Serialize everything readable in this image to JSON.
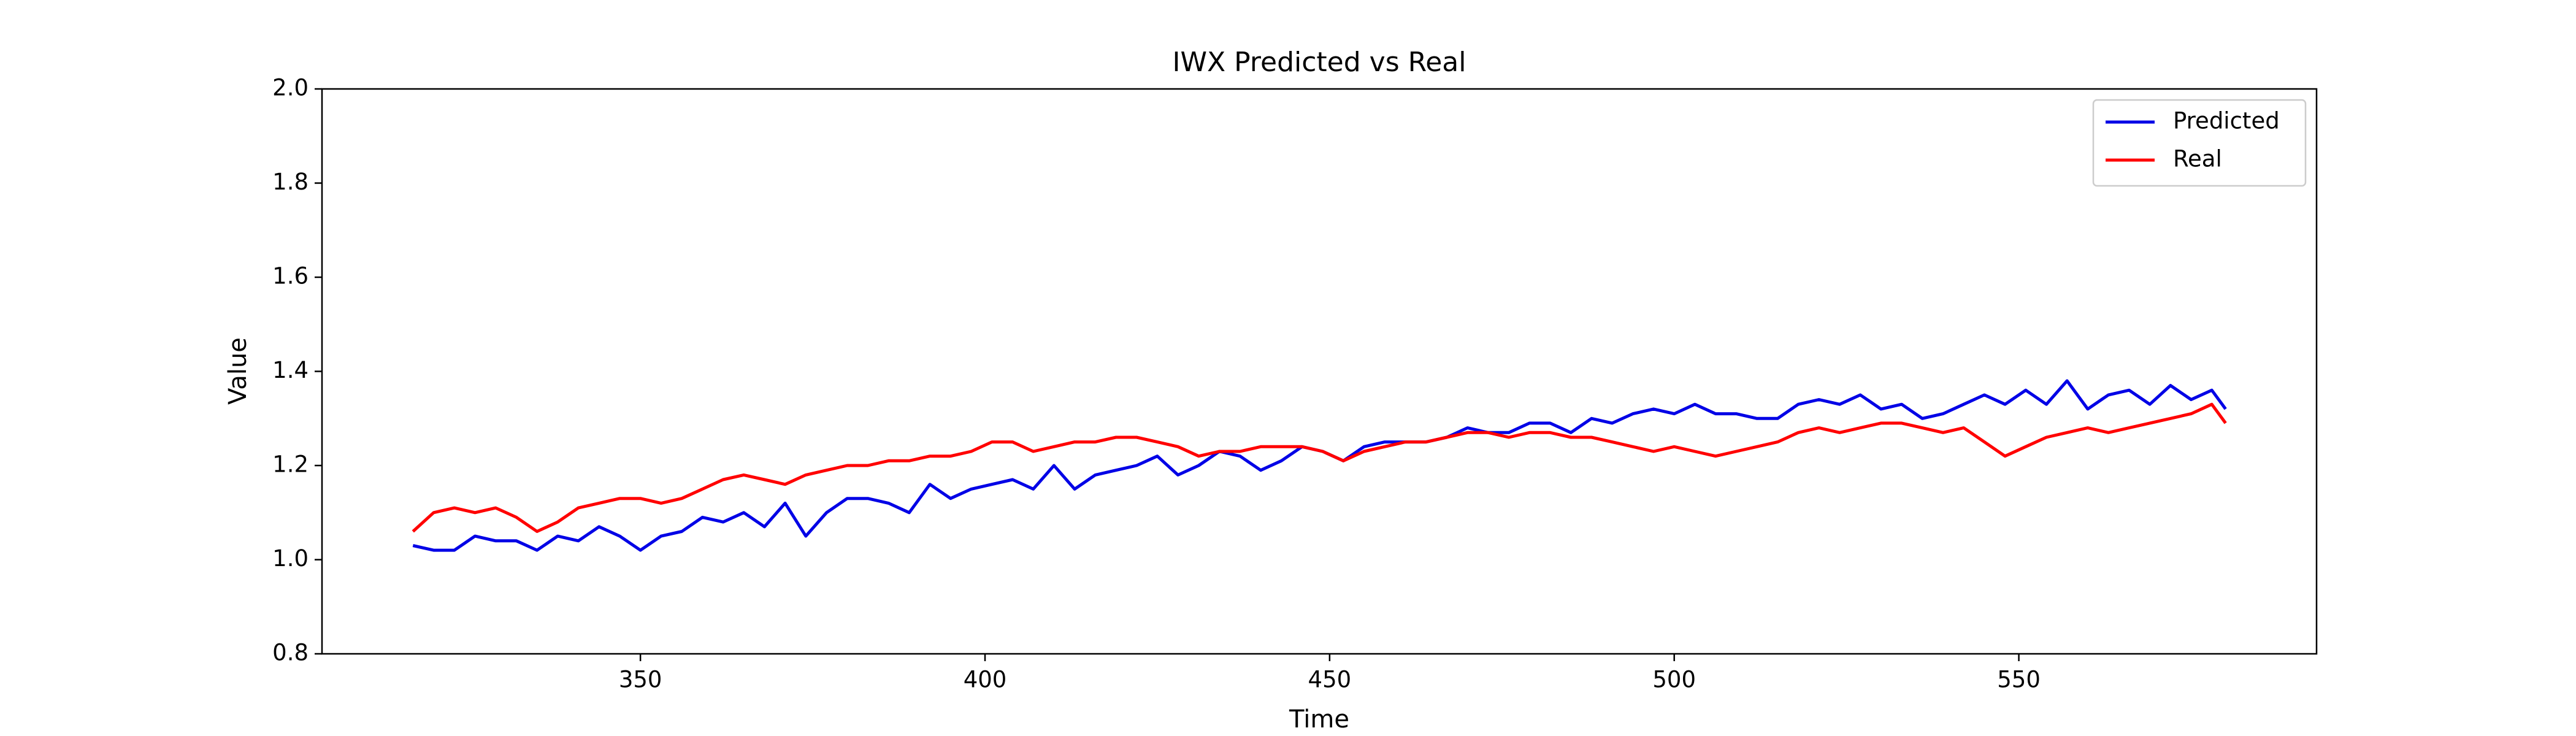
{
  "chart_data": {
    "type": "line",
    "title": "IWX Predicted vs Real",
    "x_label": "Time",
    "y_label": "Value",
    "x": [
      317,
      320,
      323,
      326,
      329,
      332,
      335,
      338,
      341,
      344,
      347,
      350,
      353,
      356,
      359,
      362,
      365,
      368,
      371,
      374,
      377,
      380,
      383,
      386,
      389,
      392,
      395,
      398,
      401,
      404,
      407,
      410,
      413,
      416,
      419,
      422,
      425,
      428,
      431,
      434,
      437,
      440,
      443,
      446,
      449,
      452,
      455,
      458,
      461,
      464,
      467,
      470,
      473,
      476,
      479,
      482,
      485,
      488,
      491,
      494,
      497,
      500,
      503,
      506,
      509,
      512,
      515,
      518,
      521,
      524,
      527,
      530,
      533,
      536,
      539,
      542,
      545,
      548,
      551,
      554,
      557,
      560,
      563,
      566,
      569,
      572,
      575,
      578,
      580
    ],
    "series": [
      {
        "name": "Predicted",
        "color": "#0000e6",
        "values": [
          1.03,
          1.02,
          1.02,
          1.05,
          1.04,
          1.04,
          1.02,
          1.05,
          1.04,
          1.07,
          1.05,
          1.02,
          1.05,
          1.06,
          1.09,
          1.08,
          1.1,
          1.07,
          1.12,
          1.05,
          1.1,
          1.13,
          1.13,
          1.12,
          1.1,
          1.16,
          1.13,
          1.15,
          1.16,
          1.17,
          1.15,
          1.2,
          1.15,
          1.18,
          1.19,
          1.2,
          1.22,
          1.18,
          1.2,
          1.23,
          1.22,
          1.19,
          1.21,
          1.24,
          1.23,
          1.21,
          1.24,
          1.25,
          1.25,
          1.25,
          1.26,
          1.28,
          1.27,
          1.27,
          1.29,
          1.29,
          1.27,
          1.3,
          1.29,
          1.31,
          1.32,
          1.31,
          1.33,
          1.31,
          1.31,
          1.3,
          1.3,
          1.33,
          1.34,
          1.33,
          1.35,
          1.32,
          1.33,
          1.3,
          1.31,
          1.33,
          1.35,
          1.33,
          1.36,
          1.33,
          1.38,
          1.32,
          1.35,
          1.36,
          1.33,
          1.37,
          1.34,
          1.36,
          1.32
        ]
      },
      {
        "name": "Real",
        "color": "#ff0000",
        "values": [
          1.06,
          1.1,
          1.11,
          1.1,
          1.11,
          1.09,
          1.06,
          1.08,
          1.11,
          1.12,
          1.13,
          1.13,
          1.12,
          1.13,
          1.15,
          1.17,
          1.18,
          1.17,
          1.16,
          1.18,
          1.19,
          1.2,
          1.2,
          1.21,
          1.21,
          1.22,
          1.22,
          1.23,
          1.25,
          1.25,
          1.23,
          1.24,
          1.25,
          1.25,
          1.26,
          1.26,
          1.25,
          1.24,
          1.22,
          1.23,
          1.23,
          1.24,
          1.24,
          1.24,
          1.23,
          1.21,
          1.23,
          1.24,
          1.25,
          1.25,
          1.26,
          1.27,
          1.27,
          1.26,
          1.27,
          1.27,
          1.26,
          1.26,
          1.25,
          1.24,
          1.23,
          1.24,
          1.23,
          1.22,
          1.23,
          1.24,
          1.25,
          1.27,
          1.28,
          1.27,
          1.28,
          1.29,
          1.29,
          1.28,
          1.27,
          1.28,
          1.25,
          1.22,
          1.24,
          1.26,
          1.27,
          1.28,
          1.27,
          1.28,
          1.29,
          1.3,
          1.31,
          1.33,
          1.29
        ]
      }
    ],
    "xlim": [
      303.8,
      593.2
    ],
    "xticks": [
      350,
      400,
      450,
      500,
      550
    ],
    "ylim": [
      0.8,
      2.0
    ],
    "yticks": [
      0.8,
      {
        "value": 1.0,
        "label": "1.0"
      },
      1.2,
      1.4,
      1.6,
      1.8,
      {
        "value": 2.0,
        "label": "2.0"
      }
    ],
    "legend": "upper right"
  }
}
